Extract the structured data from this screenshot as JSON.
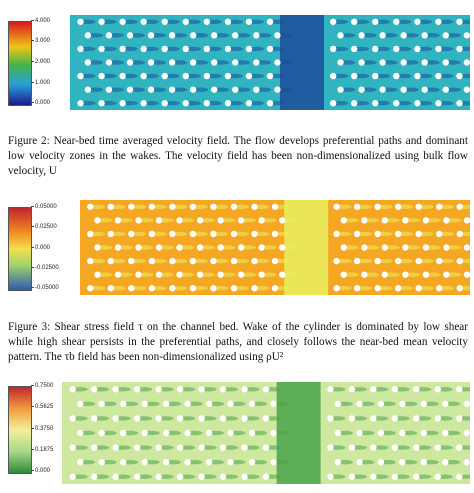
{
  "figures": [
    {
      "id": "fig2",
      "colorbar": {
        "ticks": [
          "4.000",
          "3.000",
          "2.000",
          "1.000",
          "0.000"
        ],
        "colors": [
          "#d7191c",
          "#f0c419",
          "#41b549",
          "#2a9fd6",
          "#1b1b8f"
        ]
      },
      "field": {
        "background": "#2fb4c0",
        "rows": 7,
        "cols": 19,
        "wake_color": "#1c4e9a",
        "dot_color": "#ffffff"
      }
    },
    {
      "id": "fig3",
      "colorbar": {
        "ticks": [
          "0.05000",
          "0.02500",
          "0.000",
          "-0.02500",
          "-0.05000"
        ],
        "colors": [
          "#c0262d",
          "#f28c22",
          "#f4e04d",
          "#9fd36a",
          "#2e5bb0"
        ]
      },
      "field": {
        "background": "#f5a623",
        "rows": 7,
        "cols": 19,
        "wake_color": "#e8f060",
        "dot_color": "#ffffff"
      }
    },
    {
      "id": "fig4",
      "colorbar": {
        "ticks": [
          "0.7500",
          "0.5625",
          "0.3750",
          "0.1875",
          "0.000"
        ],
        "colors": [
          "#c0262d",
          "#f29a3c",
          "#f2ef9a",
          "#a8d88a",
          "#2e8a3a"
        ]
      },
      "field": {
        "background": "#cfe8a0",
        "rows": 7,
        "cols": 19,
        "wake_color": "#4aa24a",
        "dot_color": "#ffffff"
      }
    }
  ],
  "captions": {
    "fig2": "Figure 2: Near-bed time averaged velocity field. The flow develops preferential paths and dominant low velocity zones in the wakes. The velocity field has been non-dimensionalized using bulk flow velocity, U",
    "fig3_part1": "Figure 3: Shear stress field τ on the channel bed. Wake of the cylinder is dominated by low shear while high shear persists in the preferential paths, and closely follows the near-bed mean velocity pattern. The",
    "fig3_part2": "τb field has been non-dimensionalized using ρU²"
  }
}
